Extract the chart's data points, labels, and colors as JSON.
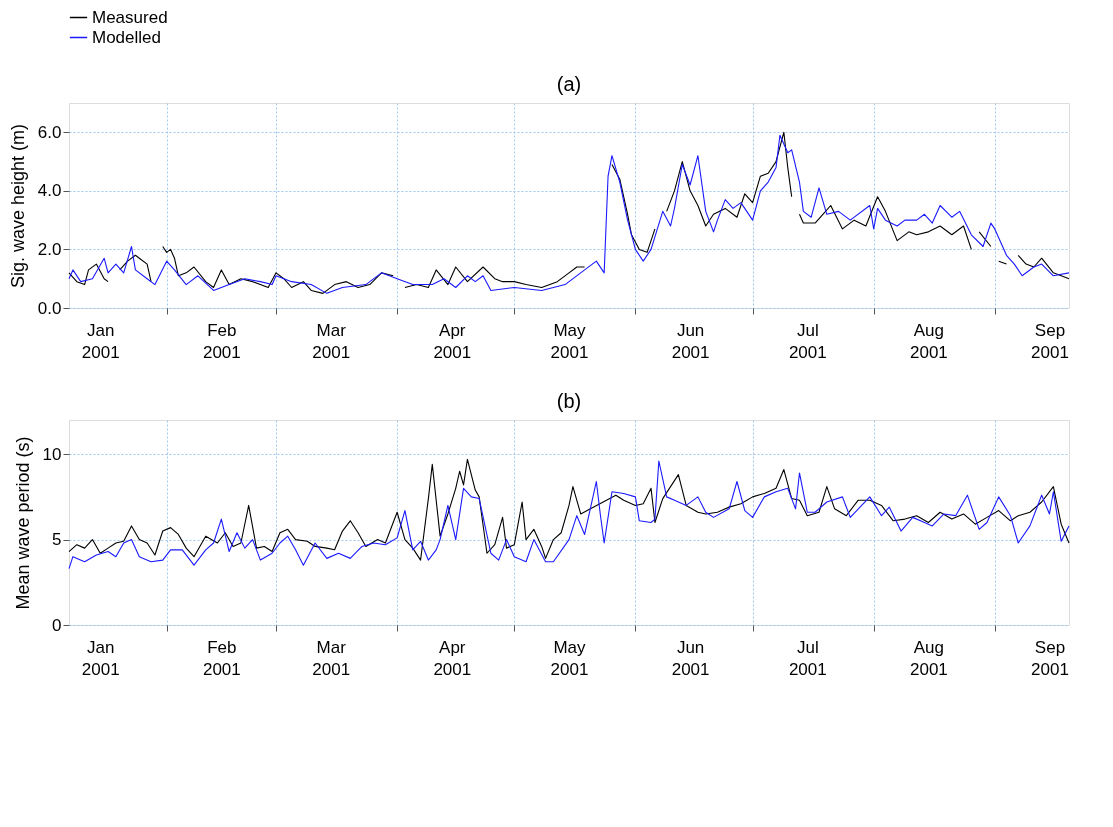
{
  "chart_data": [
    {
      "type": "line",
      "title": "(a)",
      "ylabel": "Sig. wave height (m)",
      "xlim": [
        "2001-01-07",
        "2001-09-20"
      ],
      "xticks": [
        {
          "value": "2001-01-15",
          "label": "Jan\n2001"
        },
        {
          "value": "2001-02-01",
          "label": null
        },
        {
          "value": "2001-02-15",
          "label": "Feb\n2001"
        },
        {
          "value": "2001-03-01",
          "label": null
        },
        {
          "value": "2001-03-15",
          "label": "Mar\n2001"
        },
        {
          "value": "2001-04-01",
          "label": null
        },
        {
          "value": "2001-04-15",
          "label": "Apr\n2001"
        },
        {
          "value": "2001-05-01",
          "label": null
        },
        {
          "value": "2001-05-15",
          "label": "May\n2001"
        },
        {
          "value": "2001-06-01",
          "label": null
        },
        {
          "value": "2001-06-15",
          "label": "Jun\n2001"
        },
        {
          "value": "2001-07-01",
          "label": null
        },
        {
          "value": "2001-07-15",
          "label": "Jul\n2001"
        },
        {
          "value": "2001-08-01",
          "label": null
        },
        {
          "value": "2001-08-15",
          "label": "Aug\n2001"
        },
        {
          "value": "2001-09-01",
          "label": null
        },
        {
          "value": "2001-09-15",
          "label": "Sep\n2001"
        }
      ],
      "ylim": [
        0,
        7
      ],
      "yticks": [
        {
          "value": 0,
          "label": "0.0"
        },
        {
          "value": 2,
          "label": "2.0"
        },
        {
          "value": 4,
          "label": "4.0"
        },
        {
          "value": 6,
          "label": "6.0"
        }
      ],
      "grid": true,
      "legend": "top left",
      "series": [
        {
          "name": "Measured",
          "color": "#000000",
          "x": [
            "2001-01-07",
            "2001-01-09",
            "2001-01-11",
            "2001-01-12",
            "2001-01-14",
            "2001-01-16",
            "2001-01-17",
            "2001-01-18",
            "2001-01-20",
            "2001-01-22",
            "2001-01-24",
            "2001-01-25",
            "2001-01-27",
            "2001-01-28",
            "2001-01-30",
            "2001-01-31",
            "2001-02-01",
            "2001-02-02",
            "2001-02-03",
            "2001-02-04",
            "2001-02-06",
            "2001-02-08",
            "2001-02-11",
            "2001-02-13",
            "2001-02-15",
            "2001-02-17",
            "2001-02-20",
            "2001-02-23",
            "2001-02-27",
            "2001-03-01",
            "2001-03-03",
            "2001-03-05",
            "2001-03-08",
            "2001-03-10",
            "2001-03-13",
            "2001-03-16",
            "2001-03-19",
            "2001-03-22",
            "2001-03-25",
            "2001-03-28",
            "2001-03-31",
            "2001-04-02",
            "2001-04-03",
            "2001-04-06",
            "2001-04-09",
            "2001-04-11",
            "2001-04-14",
            "2001-04-16",
            "2001-04-19",
            "2001-04-23",
            "2001-04-26",
            "2001-04-28",
            "2001-05-01",
            "2001-05-04",
            "2001-05-08",
            "2001-05-12",
            "2001-05-15",
            "2001-05-17",
            "2001-05-19",
            "2001-05-21",
            "2001-05-26",
            "2001-05-28",
            "2001-05-30",
            "2001-05-31",
            "2001-06-02",
            "2001-06-04",
            "2001-06-06",
            "2001-06-07",
            "2001-06-09",
            "2001-06-11",
            "2001-06-13",
            "2001-06-15",
            "2001-06-17",
            "2001-06-19",
            "2001-06-21",
            "2001-06-24",
            "2001-06-27",
            "2001-06-29",
            "2001-07-01",
            "2001-07-03",
            "2001-07-05",
            "2001-07-07",
            "2001-07-08",
            "2001-07-09",
            "2001-07-10",
            "2001-07-11",
            "2001-07-12",
            "2001-07-13",
            "2001-07-14",
            "2001-07-17",
            "2001-07-19",
            "2001-07-21",
            "2001-07-24",
            "2001-07-27",
            "2001-07-30",
            "2001-08-02",
            "2001-08-04",
            "2001-08-07",
            "2001-08-10",
            "2001-08-12",
            "2001-08-15",
            "2001-08-18",
            "2001-08-21",
            "2001-08-24",
            "2001-08-26",
            "2001-08-27",
            "2001-08-28",
            "2001-08-31",
            "2001-09-01",
            "2001-09-02",
            "2001-09-04",
            "2001-09-05",
            "2001-09-07",
            "2001-09-09",
            "2001-09-11",
            "2001-09-13",
            "2001-09-16",
            "2001-09-20"
          ],
          "values": [
            1.2,
            0.9,
            0.8,
            1.3,
            1.5,
            1.0,
            0.9,
            null,
            1.3,
            1.6,
            1.8,
            1.7,
            1.5,
            0.9,
            null,
            2.1,
            1.9,
            2.0,
            1.7,
            1.1,
            1.2,
            1.4,
            0.9,
            0.7,
            1.3,
            0.8,
            1.0,
            0.9,
            0.7,
            1.2,
            1.0,
            0.7,
            0.9,
            0.6,
            0.5,
            0.8,
            0.9,
            0.7,
            0.8,
            1.2,
            1.1,
            null,
            0.7,
            0.8,
            0.7,
            1.3,
            0.8,
            1.4,
            0.9,
            1.4,
            1.0,
            0.9,
            0.9,
            0.8,
            0.7,
            0.9,
            1.2,
            1.4,
            1.4,
            null,
            4.9,
            4.4,
            3.2,
            2.5,
            2.0,
            1.9,
            2.7,
            null,
            3.3,
            4.0,
            5.0,
            4.0,
            3.5,
            2.8,
            3.2,
            3.4,
            3.1,
            3.9,
            3.6,
            4.5,
            4.6,
            5.0,
            5.5,
            6.0,
            4.8,
            3.8,
            null,
            3.2,
            2.9,
            2.9,
            3.2,
            3.5,
            2.7,
            3.0,
            2.8,
            3.8,
            3.3,
            2.3,
            2.6,
            2.5,
            2.6,
            2.8,
            2.5,
            2.8,
            2.0,
            null,
            2.6,
            2.1,
            null,
            1.6,
            1.5,
            null,
            1.8,
            1.5,
            1.4,
            1.7,
            1.2,
            1.0
          ]
        },
        {
          "name": "Modelled",
          "color": "#1a1aff",
          "x": [
            "2001-01-07",
            "2001-01-08",
            "2001-01-10",
            "2001-01-13",
            "2001-01-16",
            "2001-01-17",
            "2001-01-19",
            "2001-01-21",
            "2001-01-23",
            "2001-01-24",
            "2001-01-27",
            "2001-01-29",
            "2001-02-01",
            "2001-02-03",
            "2001-02-06",
            "2001-02-09",
            "2001-02-13",
            "2001-02-17",
            "2001-02-21",
            "2001-02-25",
            "2001-02-28",
            "2001-03-01",
            "2001-03-05",
            "2001-03-10",
            "2001-03-14",
            "2001-03-18",
            "2001-03-24",
            "2001-03-28",
            "2001-04-01",
            "2001-04-05",
            "2001-04-10",
            "2001-04-13",
            "2001-04-16",
            "2001-04-19",
            "2001-04-21",
            "2001-04-23",
            "2001-04-25",
            "2001-05-01",
            "2001-05-08",
            "2001-05-14",
            "2001-05-19",
            "2001-05-22",
            "2001-05-24",
            "2001-05-25",
            "2001-05-26",
            "2001-05-28",
            "2001-05-30",
            "2001-06-01",
            "2001-06-03",
            "2001-06-05",
            "2001-06-08",
            "2001-06-10",
            "2001-06-11",
            "2001-06-13",
            "2001-06-15",
            "2001-06-17",
            "2001-06-19",
            "2001-06-21",
            "2001-06-22",
            "2001-06-24",
            "2001-06-26",
            "2001-06-28",
            "2001-07-01",
            "2001-07-03",
            "2001-07-05",
            "2001-07-07",
            "2001-07-08",
            "2001-07-10",
            "2001-07-11",
            "2001-07-13",
            "2001-07-14",
            "2001-07-16",
            "2001-07-18",
            "2001-07-20",
            "2001-07-23",
            "2001-07-26",
            "2001-07-31",
            "2001-08-01",
            "2001-08-02",
            "2001-08-04",
            "2001-08-07",
            "2001-08-09",
            "2001-08-12",
            "2001-08-14",
            "2001-08-16",
            "2001-08-18",
            "2001-08-21",
            "2001-08-23",
            "2001-08-26",
            "2001-08-29",
            "2001-08-31",
            "2001-09-01",
            "2001-09-04",
            "2001-09-06",
            "2001-09-08",
            "2001-09-11",
            "2001-09-13",
            "2001-09-16",
            "2001-09-20"
          ],
          "values": [
            1.0,
            1.3,
            0.9,
            1.0,
            1.7,
            1.2,
            1.5,
            1.2,
            2.1,
            1.3,
            1.0,
            0.8,
            1.6,
            1.3,
            0.8,
            1.1,
            0.6,
            0.8,
            1.0,
            0.9,
            0.8,
            1.1,
            0.9,
            0.8,
            0.5,
            0.7,
            0.8,
            1.2,
            1.0,
            0.8,
            0.8,
            1.0,
            0.7,
            1.1,
            0.9,
            1.1,
            0.6,
            0.7,
            0.6,
            0.8,
            1.3,
            1.6,
            1.2,
            4.5,
            5.2,
            4.3,
            3.0,
            2.0,
            1.6,
            2.0,
            3.3,
            2.8,
            3.4,
            4.9,
            4.2,
            5.2,
            3.3,
            2.6,
            3.0,
            3.7,
            3.4,
            3.6,
            3.0,
            4.0,
            4.3,
            4.8,
            5.9,
            5.3,
            5.4,
            4.3,
            3.3,
            3.1,
            4.1,
            3.2,
            3.3,
            3.0,
            3.5,
            2.7,
            3.4,
            3.0,
            2.8,
            3.0,
            3.0,
            3.2,
            2.9,
            3.5,
            3.1,
            3.3,
            2.5,
            2.1,
            2.9,
            2.7,
            1.8,
            1.5,
            1.1,
            1.4,
            1.5,
            1.1,
            1.2
          ]
        }
      ]
    },
    {
      "type": "line",
      "title": "(b)",
      "ylabel": "Mean wave period (s)",
      "xlim": [
        "2001-01-07",
        "2001-09-20"
      ],
      "xticks": [
        {
          "value": "2001-01-15",
          "label": "Jan\n2001"
        },
        {
          "value": "2001-02-01",
          "label": null
        },
        {
          "value": "2001-02-15",
          "label": "Feb\n2001"
        },
        {
          "value": "2001-03-01",
          "label": null
        },
        {
          "value": "2001-03-15",
          "label": "Mar\n2001"
        },
        {
          "value": "2001-04-01",
          "label": null
        },
        {
          "value": "2001-04-15",
          "label": "Apr\n2001"
        },
        {
          "value": "2001-05-01",
          "label": null
        },
        {
          "value": "2001-05-15",
          "label": "May\n2001"
        },
        {
          "value": "2001-06-01",
          "label": null
        },
        {
          "value": "2001-06-15",
          "label": "Jun\n2001"
        },
        {
          "value": "2001-07-01",
          "label": null
        },
        {
          "value": "2001-07-15",
          "label": "Jul\n2001"
        },
        {
          "value": "2001-08-01",
          "label": null
        },
        {
          "value": "2001-08-15",
          "label": "Aug\n2001"
        },
        {
          "value": "2001-09-01",
          "label": null
        },
        {
          "value": "2001-09-15",
          "label": "Sep\n2001"
        }
      ],
      "ylim": [
        0,
        12
      ],
      "yticks": [
        0,
        5,
        10
      ],
      "grid": true,
      "legend": "top left",
      "series": [
        {
          "name": "Measured",
          "color": "#000000",
          "x": [
            "2001-01-07",
            "2001-01-09",
            "2001-01-11",
            "2001-01-13",
            "2001-01-15",
            "2001-01-17",
            "2001-01-19",
            "2001-01-21",
            "2001-01-23",
            "2001-01-25",
            "2001-01-27",
            "2001-01-29",
            "2001-01-31",
            "2001-02-02",
            "2001-02-04",
            "2001-02-06",
            "2001-02-08",
            "2001-02-11",
            "2001-02-14",
            "2001-02-16",
            "2001-02-18",
            "2001-02-20",
            "2001-02-22",
            "2001-02-24",
            "2001-02-26",
            "2001-02-28",
            "2001-03-02",
            "2001-03-04",
            "2001-03-06",
            "2001-03-09",
            "2001-03-11",
            "2001-03-14",
            "2001-03-16",
            "2001-03-18",
            "2001-03-20",
            "2001-03-22",
            "2001-03-24",
            "2001-03-27",
            "2001-03-29",
            "2001-04-01",
            "2001-04-03",
            "2001-04-05",
            "2001-04-07",
            "2001-04-09",
            "2001-04-10",
            "2001-04-12",
            "2001-04-14",
            "2001-04-16",
            "2001-04-17",
            "2001-04-18",
            "2001-04-19",
            "2001-04-21",
            "2001-04-22",
            "2001-04-24",
            "2001-04-26",
            "2001-04-28",
            "2001-04-29",
            "2001-05-01",
            "2001-05-03",
            "2001-05-04",
            "2001-05-06",
            "2001-05-08",
            "2001-05-09",
            "2001-05-11",
            "2001-05-13",
            "2001-05-15",
            "2001-05-16",
            "2001-05-18",
            "2001-05-27",
            "2001-05-29",
            "2001-06-01",
            "2001-06-03",
            "2001-06-05",
            "2001-06-06",
            "2001-06-08",
            "2001-06-12",
            "2001-06-14",
            "2001-06-17",
            "2001-06-19",
            "2001-06-22",
            "2001-06-25",
            "2001-06-28",
            "2001-07-01",
            "2001-07-04",
            "2001-07-07",
            "2001-07-09",
            "2001-07-11",
            "2001-07-13",
            "2001-07-15",
            "2001-07-18",
            "2001-07-20",
            "2001-07-22",
            "2001-07-25",
            "2001-07-28",
            "2001-07-31",
            "2001-08-03",
            "2001-08-06",
            "2001-08-09",
            "2001-08-12",
            "2001-08-15",
            "2001-08-18",
            "2001-08-21",
            "2001-08-24",
            "2001-08-27",
            "2001-08-30",
            "2001-09-02",
            "2001-09-05",
            "2001-09-07",
            "2001-09-10",
            "2001-09-13",
            "2001-09-16",
            "2001-09-18",
            "2001-09-20"
          ],
          "values": [
            4.3,
            4.7,
            4.5,
            5.0,
            4.2,
            4.5,
            4.8,
            4.9,
            5.8,
            5.0,
            4.8,
            4.1,
            5.5,
            5.7,
            5.3,
            4.5,
            4.0,
            5.2,
            4.8,
            5.4,
            4.6,
            4.8,
            7.0,
            4.5,
            4.6,
            4.3,
            5.4,
            5.6,
            5.0,
            4.9,
            4.6,
            4.5,
            4.4,
            5.5,
            6.1,
            5.4,
            4.6,
            5.0,
            4.8,
            6.6,
            5.0,
            4.5,
            3.8,
            7.4,
            9.4,
            5.2,
            6.5,
            8.0,
            9.0,
            8.2,
            9.7,
            7.9,
            7.5,
            4.2,
            4.7,
            6.3,
            4.5,
            4.7,
            7.2,
            5.0,
            5.6,
            4.6,
            3.9,
            5.0,
            5.4,
            7.0,
            8.1,
            6.5,
            7.6,
            7.3,
            7.0,
            7.1,
            8.0,
            6.0,
            7.4,
            8.8,
            7.0,
            6.6,
            6.5,
            6.6,
            6.9,
            7.1,
            7.5,
            7.7,
            8.0,
            9.1,
            7.4,
            7.3,
            6.4,
            6.6,
            8.1,
            6.8,
            6.4,
            7.3,
            7.3,
            7.0,
            6.1,
            6.2,
            6.4,
            6.0,
            6.6,
            6.2,
            6.5,
            5.9,
            6.3,
            6.7,
            6.1,
            6.4,
            6.6,
            7.2,
            8.1,
            5.9,
            4.8
          ]
        },
        {
          "name": "Modelled",
          "color": "#1a1aff",
          "x": [
            "2001-01-07",
            "2001-01-08",
            "2001-01-11",
            "2001-01-14",
            "2001-01-17",
            "2001-01-19",
            "2001-01-21",
            "2001-01-23",
            "2001-01-25",
            "2001-01-28",
            "2001-01-31",
            "2001-02-02",
            "2001-02-05",
            "2001-02-08",
            "2001-02-11",
            "2001-02-13",
            "2001-02-15",
            "2001-02-17",
            "2001-02-19",
            "2001-02-21",
            "2001-02-23",
            "2001-02-25",
            "2001-02-28",
            "2001-03-02",
            "2001-03-04",
            "2001-03-06",
            "2001-03-08",
            "2001-03-11",
            "2001-03-14",
            "2001-03-17",
            "2001-03-20",
            "2001-03-23",
            "2001-03-26",
            "2001-03-29",
            "2001-04-01",
            "2001-04-03",
            "2001-04-05",
            "2001-04-07",
            "2001-04-09",
            "2001-04-11",
            "2001-04-12",
            "2001-04-14",
            "2001-04-16",
            "2001-04-18",
            "2001-04-20",
            "2001-04-22",
            "2001-04-25",
            "2001-04-27",
            "2001-04-29",
            "2001-05-01",
            "2001-05-04",
            "2001-05-06",
            "2001-05-09",
            "2001-05-11",
            "2001-05-15",
            "2001-05-17",
            "2001-05-19",
            "2001-05-22",
            "2001-05-23",
            "2001-05-24",
            "2001-05-26",
            "2001-05-29",
            "2001-06-01",
            "2001-06-02",
            "2001-06-05",
            "2001-06-06",
            "2001-06-07",
            "2001-06-09",
            "2001-06-11",
            "2001-06-14",
            "2001-06-17",
            "2001-06-19",
            "2001-06-21",
            "2001-06-25",
            "2001-06-27",
            "2001-06-29",
            "2001-07-01",
            "2001-07-04",
            "2001-07-07",
            "2001-07-10",
            "2001-07-12",
            "2001-07-13",
            "2001-07-15",
            "2001-07-17",
            "2001-07-20",
            "2001-07-24",
            "2001-07-26",
            "2001-07-31",
            "2001-08-03",
            "2001-08-05",
            "2001-08-08",
            "2001-08-11",
            "2001-08-14",
            "2001-08-16",
            "2001-08-19",
            "2001-08-22",
            "2001-08-25",
            "2001-08-28",
            "2001-08-30",
            "2001-09-02",
            "2001-09-05",
            "2001-09-07",
            "2001-09-10",
            "2001-09-13",
            "2001-09-15",
            "2001-09-16",
            "2001-09-18",
            "2001-09-20"
          ],
          "values": [
            3.3,
            4.0,
            3.7,
            4.1,
            4.3,
            4.0,
            4.8,
            5.0,
            4.0,
            3.7,
            3.8,
            4.4,
            4.4,
            3.5,
            4.4,
            4.8,
            6.2,
            4.3,
            5.4,
            4.5,
            5.0,
            3.8,
            4.2,
            4.8,
            5.2,
            4.4,
            3.5,
            4.8,
            3.9,
            4.2,
            3.9,
            4.6,
            4.8,
            4.7,
            5.1,
            6.7,
            4.4,
            4.9,
            3.8,
            4.4,
            5.0,
            7.0,
            5.0,
            8.0,
            7.5,
            7.4,
            4.2,
            3.8,
            5.0,
            4.0,
            3.7,
            5.0,
            3.7,
            3.7,
            5.0,
            6.4,
            5.3,
            8.4,
            6.5,
            4.8,
            7.8,
            7.7,
            7.5,
            6.1,
            6.0,
            6.2,
            9.6,
            7.5,
            7.3,
            7.0,
            7.5,
            6.6,
            6.3,
            6.8,
            8.4,
            6.7,
            6.3,
            7.5,
            7.8,
            8.0,
            6.8,
            8.9,
            6.6,
            6.6,
            7.2,
            7.5,
            6.3,
            7.5,
            6.4,
            6.9,
            5.5,
            6.3,
            6.0,
            5.8,
            6.5,
            6.4,
            7.6,
            5.6,
            6.0,
            7.5,
            6.4,
            4.8,
            5.8,
            7.6,
            6.5,
            7.8,
            4.9,
            5.8
          ]
        }
      ]
    }
  ]
}
